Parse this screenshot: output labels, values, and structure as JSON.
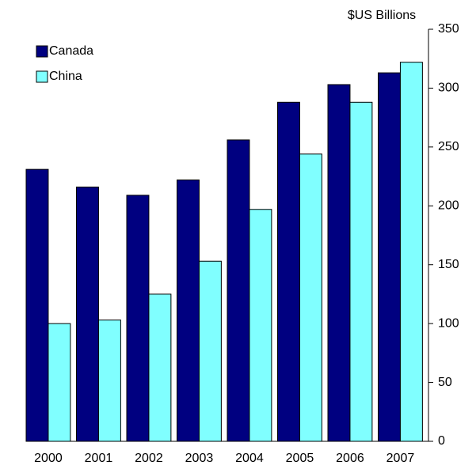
{
  "chart_data": {
    "type": "bar",
    "y_axis_label": "$US Billions",
    "categories": [
      "2000",
      "2001",
      "2002",
      "2003",
      "2004",
      "2005",
      "2006",
      "2007"
    ],
    "series": [
      {
        "name": "Canada",
        "color": "#000080",
        "values": [
          231,
          216,
          209,
          222,
          256,
          288,
          303,
          313
        ]
      },
      {
        "name": "China",
        "color": "#80ffff",
        "values": [
          100,
          103,
          125,
          153,
          197,
          244,
          288,
          322
        ]
      }
    ],
    "ylim": [
      0,
      350
    ],
    "yticks": [
      0,
      50,
      100,
      150,
      200,
      250,
      300,
      350
    ],
    "y_axis_side": "right",
    "legend": "top-left"
  }
}
